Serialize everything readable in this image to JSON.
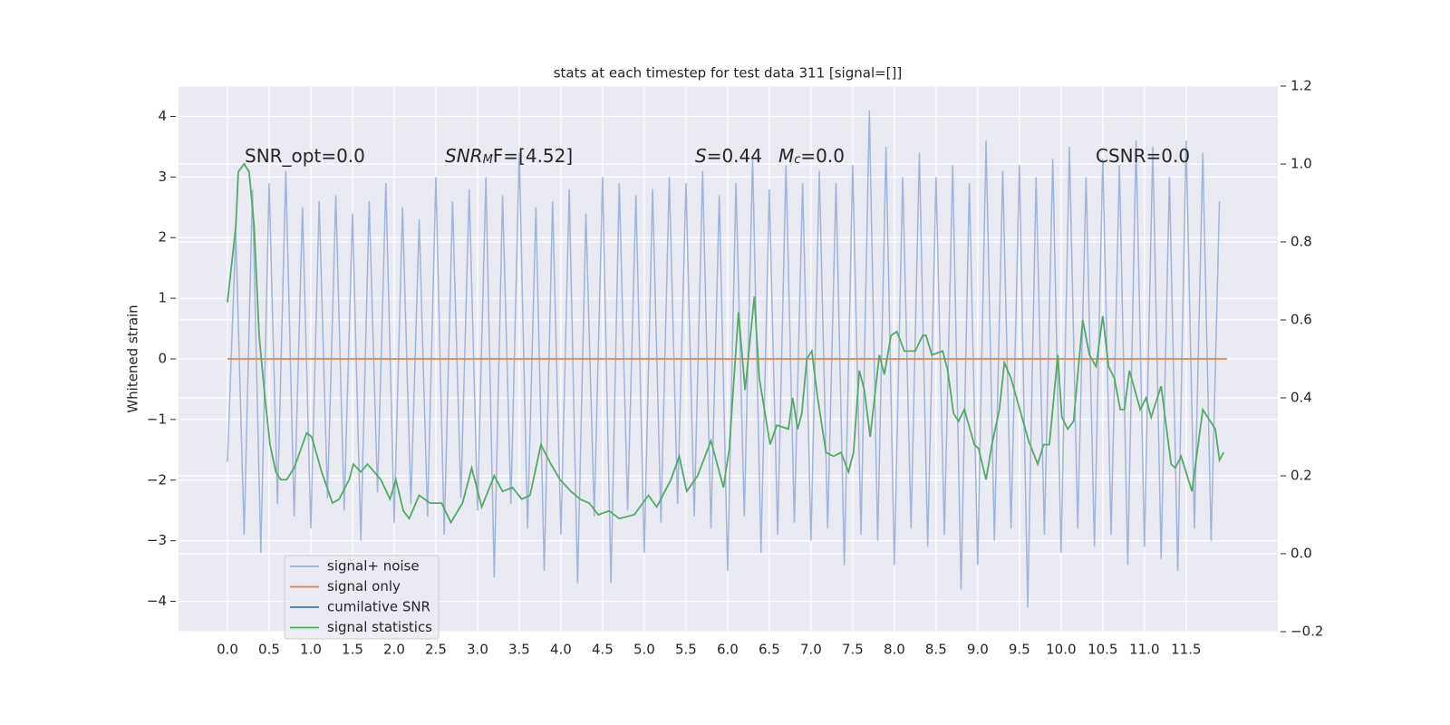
{
  "chart_data": {
    "type": "line",
    "title": "stats at each timestep for test data 311 [signal=[]]",
    "ylabel": "Whitened strain",
    "xlim": [
      -0.587,
      12.6
    ],
    "ylim": [
      -4.5,
      4.5
    ],
    "y2lim": [
      -0.2,
      1.2
    ],
    "xticks": [
      {
        "value": 0,
        "label": "0.0"
      },
      {
        "value": 0.5,
        "label": "0.5"
      },
      {
        "value": 1,
        "label": "1.0"
      },
      {
        "value": 1.5,
        "label": "1.5"
      },
      {
        "value": 2,
        "label": "2.0"
      },
      {
        "value": 2.5,
        "label": "2.5"
      },
      {
        "value": 3,
        "label": "3.0"
      },
      {
        "value": 3.5,
        "label": "3.5"
      },
      {
        "value": 4,
        "label": "4.0"
      },
      {
        "value": 4.5,
        "label": "4.5"
      },
      {
        "value": 5,
        "label": "5.0"
      },
      {
        "value": 5.5,
        "label": "5.5"
      },
      {
        "value": 6,
        "label": "6.0"
      },
      {
        "value": 6.5,
        "label": "6.5"
      },
      {
        "value": 7,
        "label": "7.0"
      },
      {
        "value": 7.5,
        "label": "7.5"
      },
      {
        "value": 8,
        "label": "8.0"
      },
      {
        "value": 8.5,
        "label": "8.5"
      },
      {
        "value": 9,
        "label": "9.0"
      },
      {
        "value": 9.5,
        "label": "9.5"
      },
      {
        "value": 10,
        "label": "10.0"
      },
      {
        "value": 10.5,
        "label": "10.5"
      },
      {
        "value": 11,
        "label": "11.0"
      },
      {
        "value": 11.5,
        "label": "11.5"
      }
    ],
    "yticks": [
      {
        "value": -4,
        "label": "−4"
      },
      {
        "value": -3,
        "label": "−3"
      },
      {
        "value": -2,
        "label": "−2"
      },
      {
        "value": -1,
        "label": "−1"
      },
      0,
      1,
      2,
      3,
      4
    ],
    "y2ticks": [
      {
        "value": -0.2,
        "label": "−0.2"
      },
      {
        "value": 0,
        "label": "0.0"
      },
      0.2,
      0.4,
      0.6,
      0.8,
      {
        "value": 1,
        "label": "1.0"
      },
      1.2
    ],
    "grid": true,
    "legend": "lower left",
    "annotations": [
      [
        {
          "text": "SNR_opt=0.0"
        }
      ],
      [
        {
          "text": "SNR",
          "italic": true
        },
        {
          "text": "M",
          "italic": true,
          "sub": true
        },
        {
          "text": "F=[4.52]"
        }
      ],
      [
        {
          "text": "S",
          "italic": true
        },
        {
          "text": "=0.44"
        }
      ],
      [
        {
          "text": "M",
          "italic": true
        },
        {
          "text": "c",
          "italic": true,
          "sub": true
        },
        {
          "text": "=0.0"
        }
      ],
      [
        {
          "text": "CSNR=0.0"
        }
      ]
    ],
    "series": [
      {
        "name": "signal+ noise",
        "color": "#9aaed4",
        "x": [
          0,
          0.1,
          0.2,
          0.3,
          0.4,
          0.5,
          0.6,
          0.7,
          0.8,
          0.9,
          1,
          1.1,
          1.2,
          1.3,
          1.4,
          1.5,
          1.6,
          1.7,
          1.8,
          1.9,
          2,
          2.1,
          2.2,
          2.3,
          2.4,
          2.5,
          2.6,
          2.7,
          2.8,
          2.9,
          3,
          3.1,
          3.2,
          3.3,
          3.4,
          3.5,
          3.6,
          3.7,
          3.8,
          3.9,
          4,
          4.1,
          4.2,
          4.3,
          4.4,
          4.5,
          4.6,
          4.7,
          4.8,
          4.9,
          5,
          5.1,
          5.2,
          5.3,
          5.4,
          5.5,
          5.6,
          5.7,
          5.8,
          5.9,
          6,
          6.1,
          6.2,
          6.3,
          6.4,
          6.5,
          6.6,
          6.7,
          6.8,
          6.9,
          7,
          7.1,
          7.2,
          7.3,
          7.4,
          7.5,
          7.6,
          7.7,
          7.8,
          7.9,
          8,
          8.1,
          8.2,
          8.3,
          8.4,
          8.5,
          8.6,
          8.7,
          8.8,
          8.9,
          9,
          9.1,
          9.2,
          9.3,
          9.4,
          9.5,
          9.6,
          9.7,
          9.8,
          9.9,
          10,
          10.1,
          10.2,
          10.3,
          10.4,
          10.5,
          10.6,
          10.7,
          10.8,
          10.9,
          11,
          11.1,
          11.2,
          11.3,
          11.4,
          11.5,
          11.6,
          11.7,
          11.8,
          11.9
        ],
        "values": [
          -1.7,
          2.1,
          -2.9,
          2.8,
          -3.2,
          2.9,
          -2.4,
          3.1,
          -2.6,
          2.5,
          -2.8,
          2.6,
          -2.3,
          2.7,
          -2.5,
          2.4,
          -3.0,
          2.6,
          -2.2,
          2.9,
          -2.7,
          2.5,
          -2.4,
          2.3,
          -2.6,
          3.0,
          -2.9,
          2.6,
          -2.3,
          2.8,
          -2.5,
          3.0,
          -3.6,
          2.7,
          -2.4,
          3.4,
          -2.8,
          2.5,
          -3.5,
          2.6,
          -2.9,
          2.8,
          -3.7,
          2.4,
          -2.6,
          3.0,
          -3.7,
          2.9,
          -2.5,
          2.7,
          -3.2,
          2.8,
          -2.7,
          3.0,
          -2.4,
          2.9,
          -2.6,
          3.1,
          -2.8,
          2.7,
          -3.5,
          2.9,
          -2.6,
          3.3,
          -3.2,
          2.8,
          -2.9,
          3.2,
          -2.7,
          2.9,
          -3.0,
          3.1,
          -2.8,
          2.9,
          -3.4,
          3.2,
          -2.9,
          4.1,
          -3.0,
          3.5,
          -3.4,
          3.0,
          -2.8,
          3.4,
          -3.1,
          3.0,
          -2.9,
          3.2,
          -3.8,
          2.9,
          -3.4,
          3.6,
          -3.0,
          3.1,
          -2.8,
          3.2,
          -4.1,
          3.0,
          -2.9,
          3.3,
          -3.2,
          3.5,
          -2.8,
          3.0,
          -3.1,
          3.3,
          -2.9,
          3.2,
          -3.4,
          3.6,
          -3.1,
          3.5,
          -3.3,
          3.0,
          -3.5,
          3.6,
          -2.8,
          3.4,
          -3.0,
          2.6
        ]
      },
      {
        "name": "signal only",
        "color": "#dd8452",
        "x": [
          0,
          11.99
        ],
        "values": [
          0,
          0
        ]
      },
      {
        "name": "cumilative SNR",
        "color": "#4c72b0",
        "x": [],
        "values": []
      },
      {
        "name": "signal statistics",
        "color": "#55a868",
        "axis": "y2",
        "x": [
          0,
          0.1,
          0.13,
          0.2,
          0.26,
          0.32,
          0.38,
          0.45,
          0.51,
          0.58,
          0.64,
          0.71,
          0.8,
          0.95,
          1.01,
          1.13,
          1.26,
          1.34,
          1.46,
          1.51,
          1.6,
          1.68,
          1.84,
          1.95,
          2.02,
          2.11,
          2.18,
          2.3,
          2.43,
          2.57,
          2.68,
          2.82,
          2.93,
          3.05,
          3.2,
          3.3,
          3.42,
          3.53,
          3.63,
          3.76,
          3.88,
          3.99,
          4.12,
          4.23,
          4.34,
          4.45,
          4.58,
          4.7,
          4.88,
          5.05,
          5.15,
          5.32,
          5.42,
          5.51,
          5.64,
          5.8,
          5.95,
          6.02,
          6.13,
          6.21,
          6.32,
          6.38,
          6.51,
          6.59,
          6.73,
          6.78,
          6.84,
          6.89,
          6.95,
          7.01,
          7.08,
          7.18,
          7.27,
          7.36,
          7.45,
          7.51,
          7.58,
          7.64,
          7.71,
          7.82,
          7.88,
          7.96,
          8.03,
          8.12,
          8.25,
          8.34,
          8.38,
          8.45,
          8.58,
          8.64,
          8.71,
          8.77,
          8.84,
          8.96,
          9.01,
          9.1,
          9.17,
          9.26,
          9.32,
          9.4,
          9.61,
          9.72,
          9.79,
          9.86,
          9.96,
          10.01,
          10.08,
          10.15,
          10.26,
          10.34,
          10.42,
          10.5,
          10.57,
          10.64,
          10.71,
          10.76,
          10.82,
          10.95,
          11.02,
          11.08,
          11.2,
          11.32,
          11.37,
          11.44,
          11.57,
          11.7,
          11.85,
          11.9,
          11.95
        ],
        "values": [
          0.645,
          0.84,
          0.98,
          1.0,
          0.98,
          0.84,
          0.56,
          0.4,
          0.28,
          0.21,
          0.19,
          0.19,
          0.22,
          0.31,
          0.3,
          0.21,
          0.13,
          0.14,
          0.19,
          0.23,
          0.21,
          0.23,
          0.19,
          0.14,
          0.19,
          0.11,
          0.09,
          0.15,
          0.13,
          0.13,
          0.08,
          0.13,
          0.22,
          0.12,
          0.2,
          0.16,
          0.17,
          0.14,
          0.15,
          0.28,
          0.23,
          0.19,
          0.16,
          0.14,
          0.13,
          0.1,
          0.11,
          0.09,
          0.1,
          0.15,
          0.12,
          0.19,
          0.25,
          0.16,
          0.2,
          0.29,
          0.17,
          0.27,
          0.62,
          0.42,
          0.66,
          0.45,
          0.28,
          0.33,
          0.32,
          0.4,
          0.32,
          0.36,
          0.5,
          0.52,
          0.4,
          0.26,
          0.25,
          0.26,
          0.21,
          0.26,
          0.47,
          0.42,
          0.3,
          0.51,
          0.46,
          0.56,
          0.57,
          0.52,
          0.52,
          0.56,
          0.56,
          0.51,
          0.52,
          0.47,
          0.36,
          0.34,
          0.37,
          0.28,
          0.27,
          0.19,
          0.28,
          0.37,
          0.49,
          0.45,
          0.29,
          0.23,
          0.28,
          0.28,
          0.51,
          0.35,
          0.32,
          0.34,
          0.6,
          0.51,
          0.48,
          0.61,
          0.48,
          0.45,
          0.37,
          0.37,
          0.47,
          0.37,
          0.4,
          0.35,
          0.43,
          0.23,
          0.22,
          0.25,
          0.16,
          0.37,
          0.32,
          0.24,
          0.26
        ]
      }
    ]
  }
}
